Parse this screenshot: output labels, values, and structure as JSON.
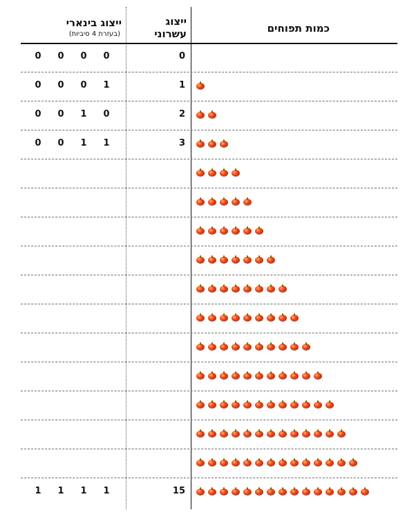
{
  "headers": {
    "quantity": "כמות תפוחים",
    "decimal_line1": "ייצוג",
    "decimal_line2": "עשרוני",
    "binary_title": "ייצוג בינארי",
    "binary_subtitle": "(בעזרת 4 סיביות)"
  },
  "rows": [
    {
      "apples": 0,
      "decimal": "0",
      "bits": [
        "0",
        "0",
        "0",
        "0"
      ]
    },
    {
      "apples": 1,
      "decimal": "1",
      "bits": [
        "0",
        "0",
        "0",
        "1"
      ]
    },
    {
      "apples": 2,
      "decimal": "2",
      "bits": [
        "0",
        "0",
        "1",
        "0"
      ]
    },
    {
      "apples": 3,
      "decimal": "3",
      "bits": [
        "0",
        "0",
        "1",
        "1"
      ]
    },
    {
      "apples": 4,
      "decimal": "",
      "bits": [
        "",
        "",
        "",
        ""
      ]
    },
    {
      "apples": 5,
      "decimal": "",
      "bits": [
        "",
        "",
        "",
        ""
      ]
    },
    {
      "apples": 6,
      "decimal": "",
      "bits": [
        "",
        "",
        "",
        ""
      ]
    },
    {
      "apples": 7,
      "decimal": "",
      "bits": [
        "",
        "",
        "",
        ""
      ]
    },
    {
      "apples": 8,
      "decimal": "",
      "bits": [
        "",
        "",
        "",
        ""
      ]
    },
    {
      "apples": 9,
      "decimal": "",
      "bits": [
        "",
        "",
        "",
        ""
      ]
    },
    {
      "apples": 10,
      "decimal": "",
      "bits": [
        "",
        "",
        "",
        ""
      ]
    },
    {
      "apples": 11,
      "decimal": "",
      "bits": [
        "",
        "",
        "",
        ""
      ]
    },
    {
      "apples": 12,
      "decimal": "",
      "bits": [
        "",
        "",
        "",
        ""
      ]
    },
    {
      "apples": 13,
      "decimal": "",
      "bits": [
        "",
        "",
        "",
        ""
      ]
    },
    {
      "apples": 14,
      "decimal": "",
      "bits": [
        "",
        "",
        "",
        ""
      ]
    },
    {
      "apples": 15,
      "decimal": "15",
      "bits": [
        "1",
        "1",
        "1",
        "1"
      ]
    }
  ],
  "colors": {
    "apple": "#e0401a",
    "grid": "#6b6b6b",
    "text": "#111111"
  },
  "icon": "apple-icon"
}
